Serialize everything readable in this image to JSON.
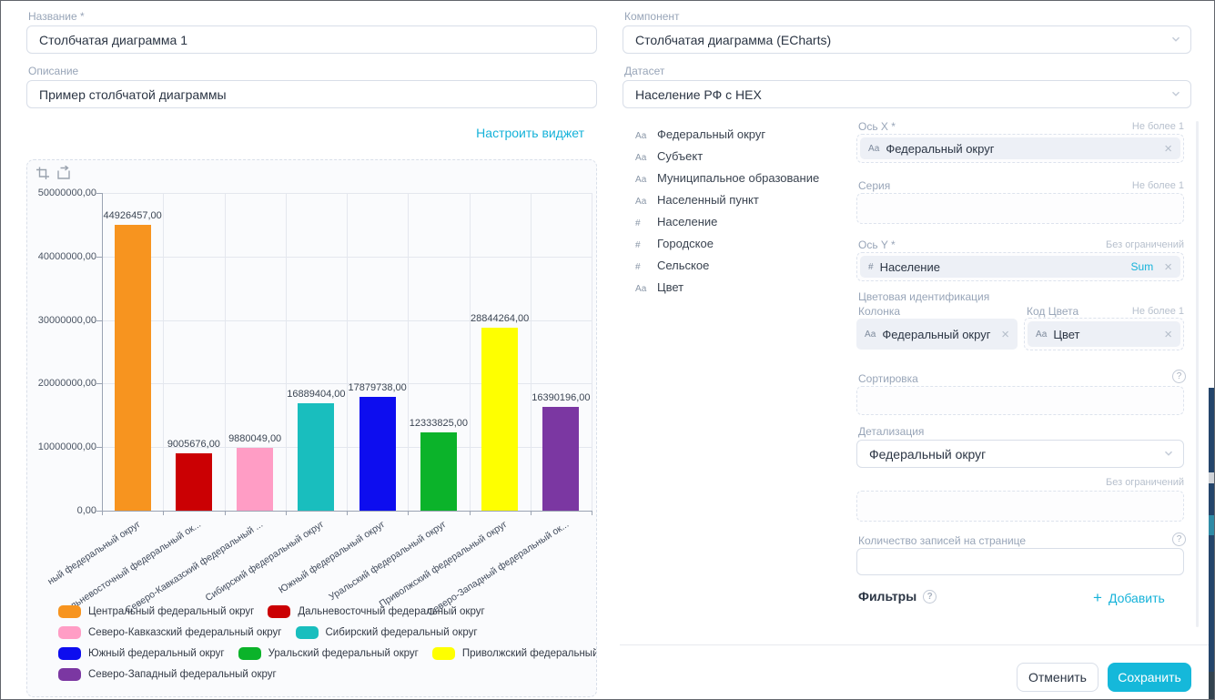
{
  "accent_color": "#15b8da",
  "icons": {
    "close": "×",
    "help": "?",
    "plus": "+",
    "text_type": "Аа",
    "number_type": "#"
  },
  "left_form": {
    "name_label": "Название *",
    "name_value": "Столбчатая диаграмма 1",
    "description_label": "Описание",
    "description_value": "Пример столбчатой диаграммы",
    "configure_widget_link": "Настроить виджет"
  },
  "chart_data": {
    "type": "bar",
    "title": "",
    "xlabel": "",
    "ylabel": "",
    "categories": [
      "Центральный федеральный округ",
      "Дальневосточный федеральный округ",
      "Северо-Кавказский федеральный округ",
      "Сибирский федеральный округ",
      "Южный федеральный округ",
      "Уральский федеральный округ",
      "Приволжский федеральный округ",
      "Северо-Западный федеральный округ"
    ],
    "x_tick_labels": [
      "ный федеральный округ",
      "Дальневосточный федеральный ок...",
      "Северо-Кавказский федеральный ...",
      "Сибирский федеральный округ",
      "Южный федеральный округ",
      "Уральский федеральный округ",
      "Приволжский федеральный округ",
      "Северо-Западный федеральный ок..."
    ],
    "values": [
      44926457,
      9005676,
      9880049,
      16889404,
      17879738,
      12333825,
      28844264,
      16390196
    ],
    "value_labels": [
      "44926457,00",
      "9005676,00",
      "9880049,00",
      "16889404,00",
      "17879738,00",
      "12333825,00",
      "28844264,00",
      "16390196,00"
    ],
    "colors": [
      "#f7941f",
      "#cb0003",
      "#ff9dc5",
      "#19bebe",
      "#0d0def",
      "#0bb32a",
      "#feff00",
      "#7b37a2"
    ],
    "ylim": [
      0,
      50000000
    ],
    "y_ticks": [
      "50000000,00",
      "40000000,00",
      "30000000,00",
      "20000000,00",
      "10000000,00",
      "0,00"
    ],
    "grid": true,
    "legend_position": "bottom-left",
    "legend_rows": [
      [
        0,
        1
      ],
      [
        2,
        3
      ],
      [
        4,
        5,
        6
      ],
      [
        7
      ]
    ],
    "toolbox_icons": [
      "datazoom-icon",
      "restore-icon"
    ]
  },
  "right_form": {
    "component_label": "Компонент",
    "component_value": "Столбчатая диаграмма (ECharts)",
    "dataset_label": "Датасет",
    "dataset_value": "Население РФ с HEX",
    "fields": [
      {
        "type": "Аа",
        "name": "Федеральный округ"
      },
      {
        "type": "Аа",
        "name": "Субъект"
      },
      {
        "type": "Аа",
        "name": "Муниципальное образование"
      },
      {
        "type": "Аа",
        "name": "Населенный пункт"
      },
      {
        "type": "#",
        "name": "Население"
      },
      {
        "type": "#",
        "name": "Городское"
      },
      {
        "type": "#",
        "name": "Сельское"
      },
      {
        "type": "Аа",
        "name": "Цвет"
      }
    ],
    "x_axis": {
      "label": "Ось X *",
      "hint": "Не более 1",
      "chip_prefix": "Аа",
      "chip_text": "Федеральный округ"
    },
    "series": {
      "label": "Серия",
      "hint": "Не более 1"
    },
    "y_axis": {
      "label": "Ось Y *",
      "hint": "Без ограничений",
      "chip_prefix": "#",
      "chip_text": "Население",
      "aggregation": "Sum"
    },
    "color_identification": {
      "label": "Цветовая идентификация",
      "column_label": "Колонка",
      "column_chip_prefix": "Аа",
      "column_chip_text": "Федеральный округ",
      "code_label": "Код Цвета",
      "code_hint": "Не более 1",
      "code_chip_prefix": "Аа",
      "code_chip_text": "Цвет"
    },
    "sorting": {
      "label": "Сортировка"
    },
    "detail": {
      "label": "Детализация",
      "value": "Федеральный округ"
    },
    "limit_hint": "Без ограничений",
    "page_size": {
      "label": "Количество записей на странице"
    },
    "filters": {
      "label": "Фильтры",
      "add_label": "Добавить"
    },
    "buttons": {
      "cancel": "Отменить",
      "save": "Сохранить"
    }
  }
}
